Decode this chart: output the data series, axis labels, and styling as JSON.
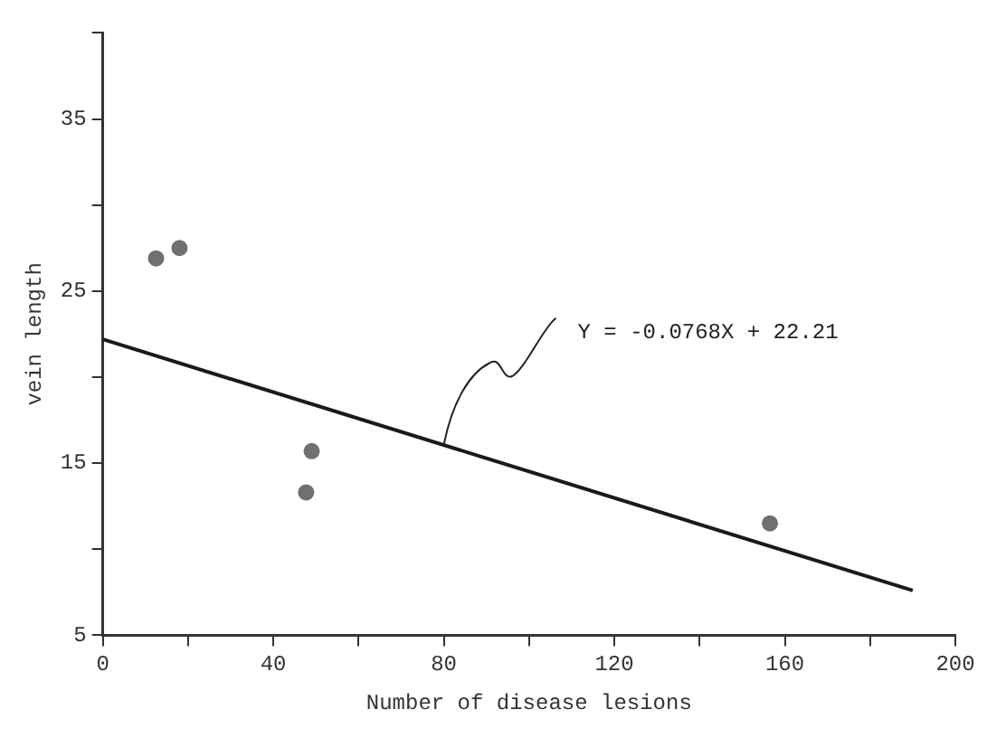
{
  "chart_data": {
    "type": "scatter",
    "xlabel": "Number of disease lesions",
    "ylabel": "vein length",
    "xlim": [
      0,
      200
    ],
    "xticks": [
      0,
      {
        "value": 20,
        "label": null
      },
      40,
      {
        "value": 60,
        "label": null
      },
      80,
      {
        "value": 100,
        "label": null
      },
      120,
      {
        "value": 140,
        "label": null
      },
      160,
      {
        "value": 180,
        "label": null
      },
      200
    ],
    "ylim": [
      5,
      40
    ],
    "yticks": [
      5,
      {
        "value": 10,
        "label": null
      },
      15,
      {
        "value": 20,
        "label": null
      },
      25,
      {
        "value": 30,
        "label": null
      },
      35,
      {
        "value": 40,
        "label": null
      }
    ],
    "grid": false,
    "marker": "circle",
    "series": [
      {
        "color": "#707070",
        "x": [
          12.5,
          18,
          47.7,
          49,
          156.5
        ],
        "values": [
          26.9,
          27.5,
          13.3,
          15.7,
          11.5
        ]
      },
      {
        "type": "line",
        "color": "#1a1a1a",
        "x": [
          0,
          190
        ],
        "values": [
          22.2,
          7.6
        ],
        "marker": "none"
      }
    ],
    "annotations": [
      {
        "text": "Y = -0.0768X + 22.21",
        "x": 80,
        "y": 16.07
      }
    ]
  }
}
